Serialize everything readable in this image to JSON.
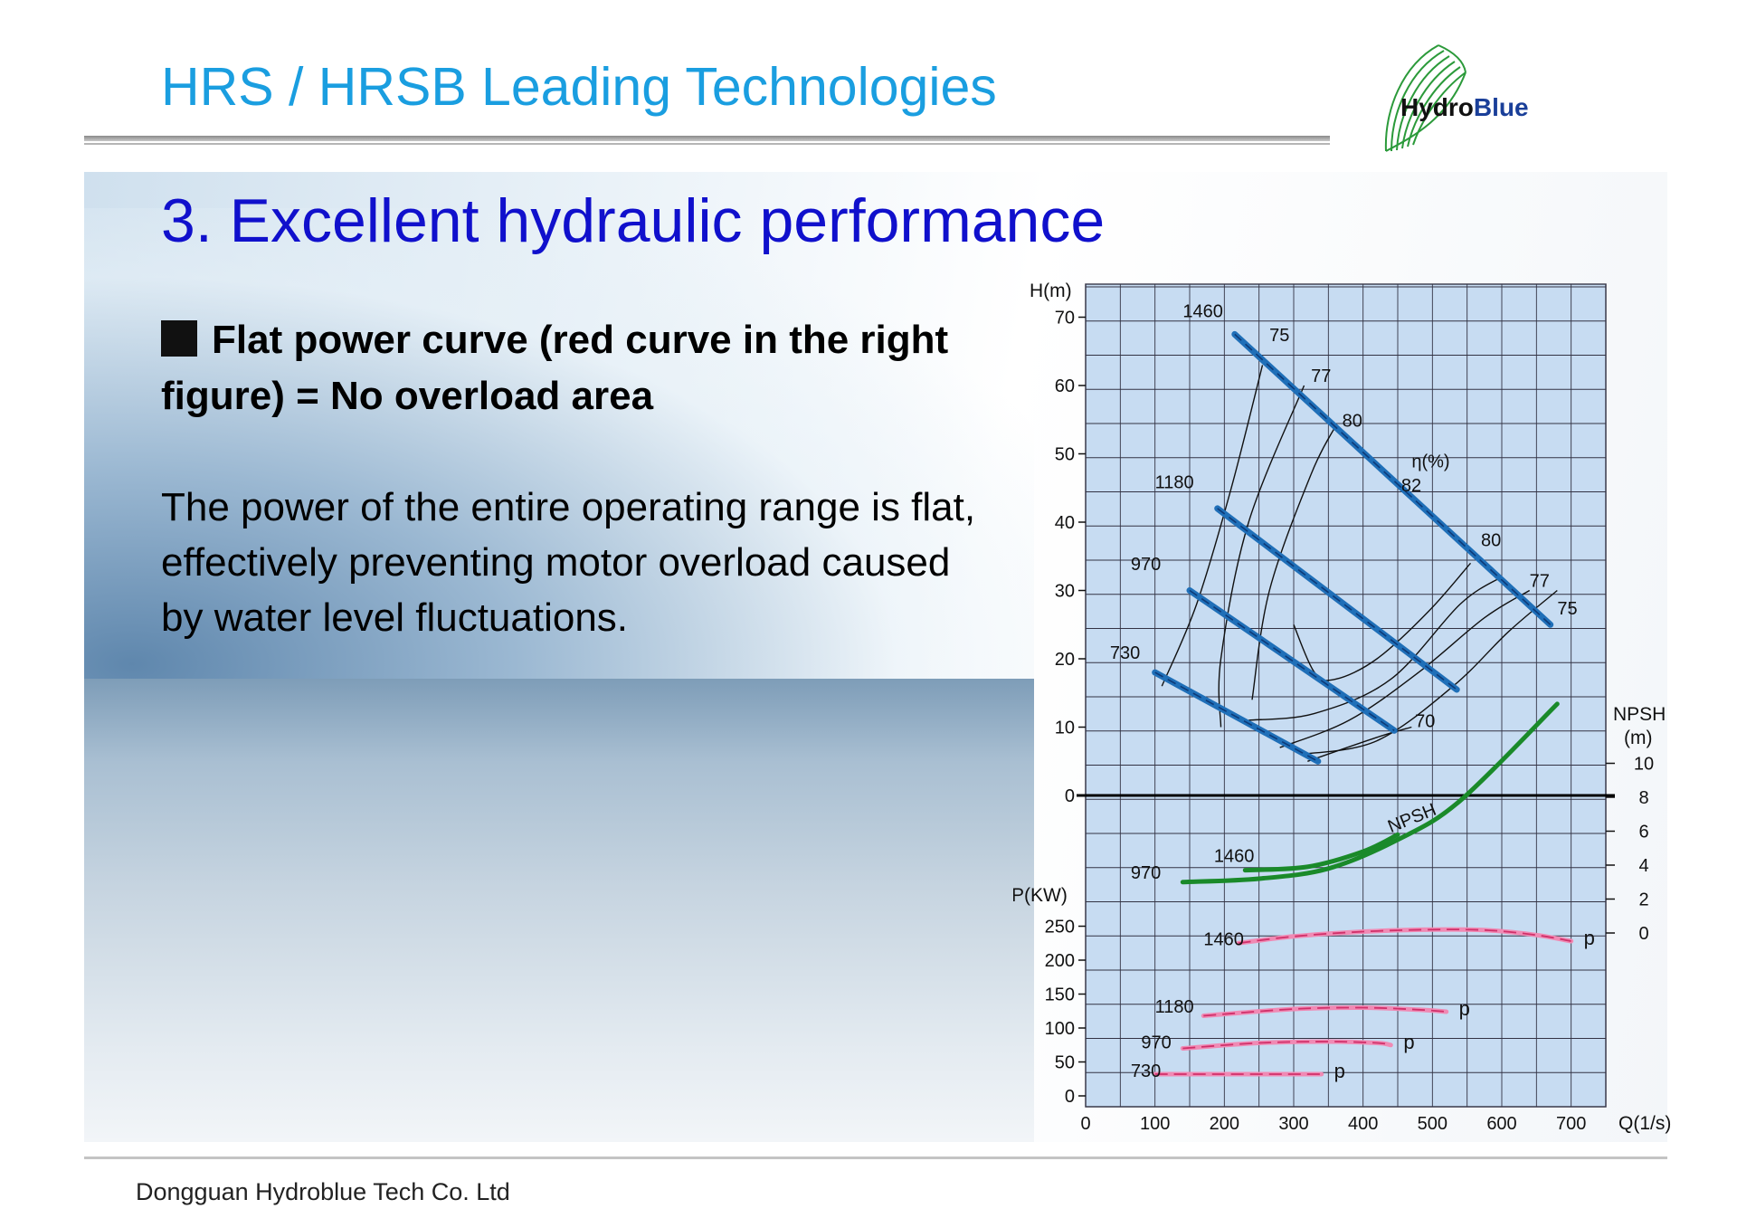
{
  "header": {
    "title": "HRS / HRSB Leading Technologies"
  },
  "logo": {
    "hydro": "Hydro",
    "blue": "Blue"
  },
  "section": {
    "title": "3. Excellent hydraulic performance"
  },
  "bullet": {
    "heading": "Flat power curve (red curve in the right figure) = No overload area"
  },
  "body": {
    "text": "The power of the entire operating range is flat, effectively preventing motor overload caused by water level fluctuations."
  },
  "footer": {
    "company": "Dongguan Hydroblue Tech Co. Ltd"
  },
  "colors": {
    "title": "#1a9ee0",
    "section": "#1010cc",
    "head_curve": "#1f6fb8",
    "npsh_curve": "#1a8a2a",
    "power_curve": "#d0306a",
    "grid_bg": "#c7dcf2"
  },
  "chart_data": {
    "type": "line",
    "xlabel": "Q(1/s)",
    "x_ticks": [
      "0",
      "100",
      "200",
      "300",
      "400",
      "500",
      "600",
      "700"
    ],
    "xlim": [
      0,
      750
    ],
    "head_axis": {
      "label": "H(m)",
      "ticks": [
        "0",
        "10",
        "20",
        "30",
        "40",
        "50",
        "60",
        "70"
      ],
      "ylim": [
        -20,
        75
      ]
    },
    "npsh_axis": {
      "label_1": "NPSH",
      "label_2": "(m)",
      "ticks": [
        "0",
        "2",
        "4",
        "6",
        "8",
        "10"
      ]
    },
    "power_axis": {
      "label": "P(KW)",
      "ticks": [
        "0",
        "50",
        "100",
        "150",
        "200",
        "250"
      ]
    },
    "head_curves": [
      {
        "name": "1460",
        "points": [
          [
            215,
            67.5
          ],
          [
            670,
            25
          ]
        ]
      },
      {
        "name": "1180",
        "points": [
          [
            190,
            42
          ],
          [
            535,
            15.5
          ]
        ]
      },
      {
        "name": "970",
        "points": [
          [
            150,
            30
          ],
          [
            445,
            9.5
          ]
        ]
      },
      {
        "name": "730",
        "points": [
          [
            100,
            18
          ],
          [
            335,
            5
          ]
        ]
      }
    ],
    "efficiency_label": "η(%)",
    "efficiency_contours": [
      {
        "name": "75",
        "points": [
          [
            110,
            16
          ],
          [
            160,
            28
          ],
          [
            210,
            45
          ],
          [
            255,
            63
          ]
        ]
      },
      {
        "name": "77",
        "points": [
          [
            195,
            10
          ],
          [
            195,
            20
          ],
          [
            235,
            40
          ],
          [
            315,
            60
          ]
        ]
      },
      {
        "name": "80",
        "points": [
          [
            240,
            14
          ],
          [
            265,
            30
          ],
          [
            325,
            47
          ],
          [
            360,
            54
          ]
        ]
      },
      {
        "name": "82",
        "points": [
          [
            300,
            25
          ],
          [
            330,
            18
          ],
          [
            360,
            17
          ],
          [
            420,
            20
          ],
          [
            495,
            27
          ],
          [
            555,
            34
          ]
        ]
      },
      {
        "name": "80",
        "points": [
          [
            235,
            11
          ],
          [
            330,
            12
          ],
          [
            440,
            17
          ],
          [
            540,
            28
          ],
          [
            600,
            32
          ]
        ]
      },
      {
        "name": "77",
        "points": [
          [
            280,
            7
          ],
          [
            380,
            11
          ],
          [
            480,
            18
          ],
          [
            575,
            26
          ],
          [
            640,
            30
          ]
        ]
      },
      {
        "name": "75",
        "points": [
          [
            310,
            6
          ],
          [
            420,
            8
          ],
          [
            530,
            16
          ],
          [
            610,
            24
          ],
          [
            680,
            30
          ]
        ]
      },
      {
        "name": "70",
        "points": [
          [
            320,
            5
          ],
          [
            420,
            8.5
          ],
          [
            470,
            10
          ]
        ]
      }
    ],
    "efficiency_labels": [
      {
        "text": "75",
        "x": 265,
        "y": 66.5
      },
      {
        "text": "77",
        "x": 325,
        "y": 60.5
      },
      {
        "text": "80",
        "x": 370,
        "y": 54
      },
      {
        "text": "82",
        "x": 455,
        "y": 44.5
      },
      {
        "text": "80",
        "x": 570,
        "y": 36.5
      },
      {
        "text": "77",
        "x": 640,
        "y": 30.5
      },
      {
        "text": "75",
        "x": 680,
        "y": 26.5
      },
      {
        "text": "70",
        "x": 475,
        "y": 10
      }
    ],
    "speed_labels": [
      {
        "text": "1460",
        "x": 140,
        "y": 70
      },
      {
        "text": "1180",
        "x": 100,
        "y": 45
      },
      {
        "text": "970",
        "x": 65,
        "y": 33
      },
      {
        "text": "730",
        "x": 35,
        "y": 20
      }
    ],
    "npsh_label": "NPSH",
    "npsh_curves": [
      {
        "name": "970",
        "points": [
          [
            140,
            3
          ],
          [
            250,
            3.2
          ],
          [
            350,
            3.8
          ],
          [
            450,
            5.5
          ],
          [
            540,
            7.8
          ],
          [
            680,
            13.5
          ]
        ]
      },
      {
        "name": "1460",
        "points": [
          [
            230,
            3.7
          ],
          [
            320,
            3.9
          ],
          [
            400,
            4.8
          ],
          [
            450,
            5.8
          ]
        ]
      }
    ],
    "npsh_speed_labels": [
      {
        "text": "970",
        "x": 65,
        "y": 3.2
      },
      {
        "text": "1460",
        "x": 185,
        "y": 4.2
      }
    ],
    "power_series_label": "p",
    "power_curves": [
      {
        "name": "1460",
        "points": [
          [
            220,
            225
          ],
          [
            300,
            235
          ],
          [
            400,
            242
          ],
          [
            500,
            245
          ],
          [
            580,
            244
          ],
          [
            650,
            237
          ],
          [
            700,
            228
          ]
        ]
      },
      {
        "name": "1180",
        "points": [
          [
            170,
            118
          ],
          [
            300,
            128
          ],
          [
            400,
            130
          ],
          [
            480,
            127
          ],
          [
            520,
            124
          ]
        ]
      },
      {
        "name": "970",
        "points": [
          [
            140,
            70
          ],
          [
            250,
            78
          ],
          [
            350,
            80
          ],
          [
            420,
            78
          ],
          [
            440,
            75
          ]
        ]
      },
      {
        "name": "730",
        "points": [
          [
            100,
            32
          ],
          [
            200,
            32
          ],
          [
            300,
            32
          ],
          [
            340,
            32
          ]
        ]
      }
    ],
    "power_speed_labels": [
      {
        "text": "1460",
        "x": 170,
        "y": 222
      },
      {
        "text": "1180",
        "x": 100,
        "y": 123
      },
      {
        "text": "970",
        "x": 80,
        "y": 70
      },
      {
        "text": "730",
        "x": 65,
        "y": 28
      }
    ]
  }
}
